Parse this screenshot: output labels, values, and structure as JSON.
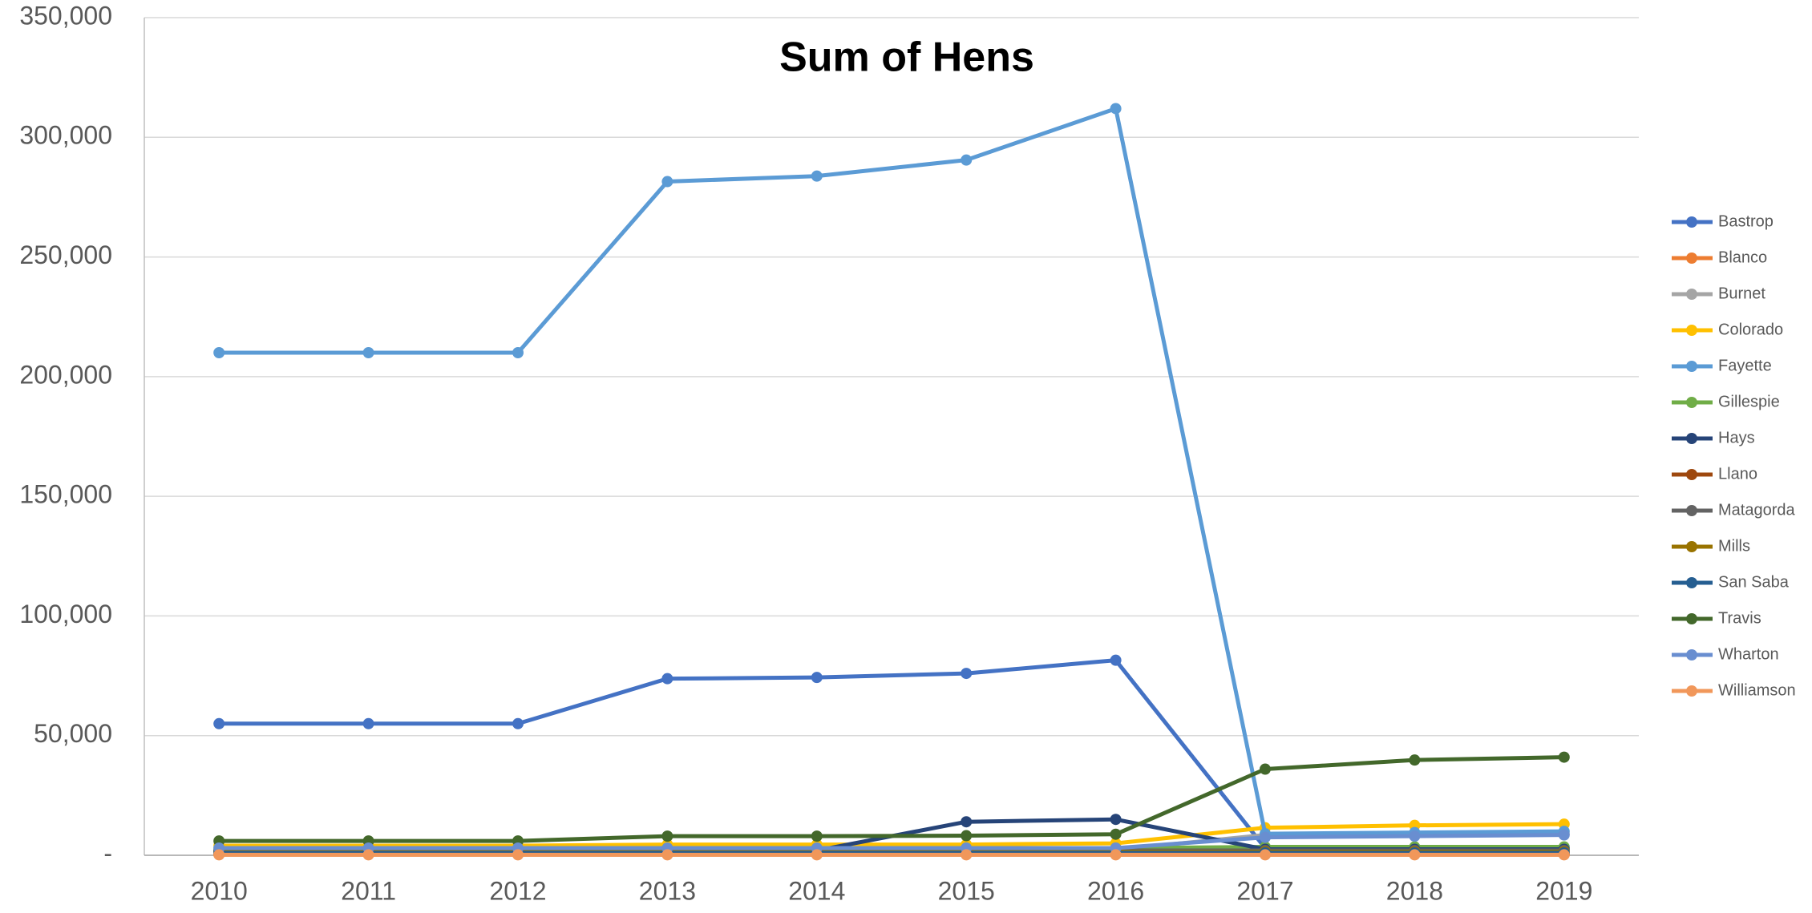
{
  "chart_data": {
    "type": "line",
    "title": "Sum of Hens",
    "categories": [
      "2010",
      "2011",
      "2012",
      "2013",
      "2014",
      "2015",
      "2016",
      "2017",
      "2018",
      "2019"
    ],
    "series": [
      {
        "name": "Bastrop",
        "color": "#4472c4",
        "values": [
          55000,
          55000,
          55000,
          73800,
          74300,
          76000,
          81500,
          3000,
          3000,
          3000
        ]
      },
      {
        "name": "Blanco",
        "color": "#ed7d31",
        "values": [
          300,
          300,
          300,
          300,
          300,
          300,
          300,
          300,
          300,
          300
        ]
      },
      {
        "name": "Burnet",
        "color": "#a5a5a5",
        "values": [
          2000,
          2000,
          2000,
          2200,
          2200,
          2200,
          2300,
          8500,
          9000,
          9000
        ]
      },
      {
        "name": "Colorado",
        "color": "#ffc000",
        "values": [
          4000,
          4000,
          4000,
          4500,
          4500,
          4500,
          5000,
          11500,
          12500,
          13000
        ]
      },
      {
        "name": "Fayette",
        "color": "#5b9bd5",
        "values": [
          210000,
          210000,
          210000,
          281500,
          283800,
          290500,
          312000,
          9000,
          9500,
          10000
        ]
      },
      {
        "name": "Gillespie",
        "color": "#70ad47",
        "values": [
          3000,
          3000,
          3000,
          3000,
          3000,
          3000,
          3000,
          3500,
          3500,
          3500
        ]
      },
      {
        "name": "Hays",
        "color": "#264478",
        "values": [
          2000,
          2000,
          2000,
          2000,
          2000,
          14000,
          15000,
          2500,
          2500,
          2500
        ]
      },
      {
        "name": "Llano",
        "color": "#9e480e",
        "values": [
          500,
          500,
          500,
          500,
          500,
          500,
          500,
          500,
          500,
          500
        ]
      },
      {
        "name": "Matagorda",
        "color": "#636363",
        "values": [
          2000,
          2000,
          2000,
          2000,
          2000,
          2000,
          2000,
          2000,
          2000,
          2000
        ]
      },
      {
        "name": "Mills",
        "color": "#997300",
        "values": [
          1500,
          1500,
          1500,
          1500,
          1500,
          1500,
          1500,
          1500,
          1500,
          1500
        ]
      },
      {
        "name": "San Saba",
        "color": "#255e91",
        "values": [
          1000,
          1000,
          1000,
          1000,
          1000,
          1000,
          1000,
          1000,
          1000,
          1000
        ]
      },
      {
        "name": "Travis",
        "color": "#43682b",
        "values": [
          6000,
          6000,
          6000,
          8000,
          8000,
          8200,
          8800,
          36000,
          39800,
          41000
        ]
      },
      {
        "name": "Wharton",
        "color": "#698ed0",
        "values": [
          3000,
          3000,
          3000,
          3000,
          3000,
          3000,
          3000,
          7500,
          8000,
          8500
        ]
      },
      {
        "name": "Williamson",
        "color": "#f1975a",
        "values": [
          200,
          200,
          200,
          200,
          200,
          200,
          200,
          200,
          200,
          200
        ]
      }
    ],
    "ylim": [
      0,
      350000
    ],
    "yticks": [
      {
        "value": 0,
        "label": "-"
      },
      {
        "value": 50000,
        "label": "50,000"
      },
      {
        "value": 100000,
        "label": "100,000"
      },
      {
        "value": 150000,
        "label": "150,000"
      },
      {
        "value": 200000,
        "label": "200,000"
      },
      {
        "value": 250000,
        "label": "250,000"
      },
      {
        "value": 300000,
        "label": "300,000"
      },
      {
        "value": 350000,
        "label": "350,000"
      }
    ],
    "grid": true,
    "legend": "right"
  }
}
